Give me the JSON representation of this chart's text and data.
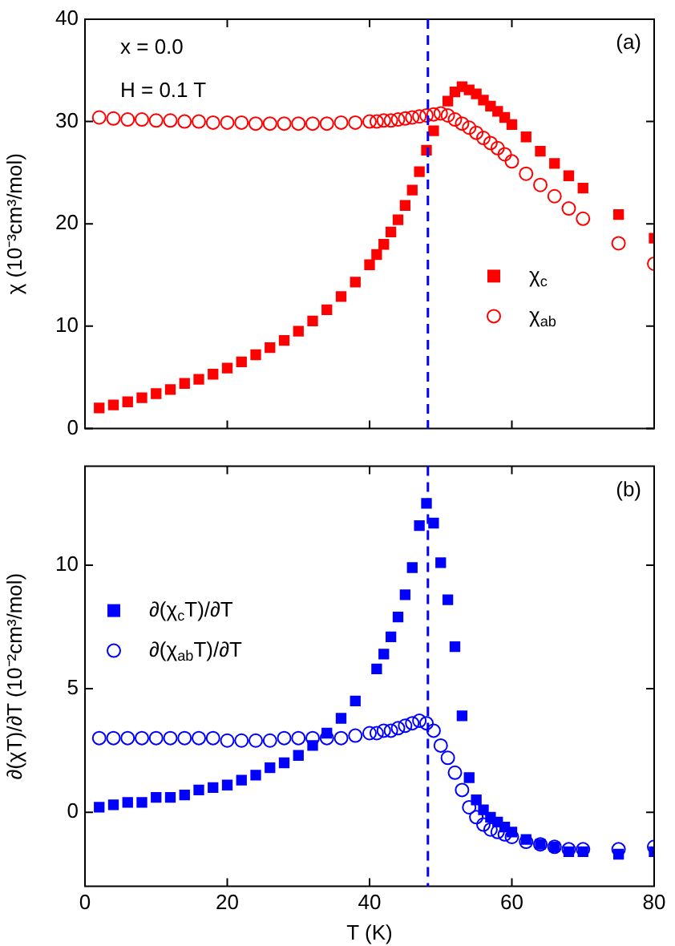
{
  "chart_data": [
    {
      "type": "scatter",
      "ylabel": "χ (10⁻³cm³/mol)",
      "annotations": [
        "x = 0.0",
        "H = 0.1 T",
        "(a)"
      ],
      "xlim": [
        0,
        80
      ],
      "xticks": [
        0,
        20,
        40,
        60,
        80
      ],
      "ylim": [
        0,
        40
      ],
      "yticks": [
        0,
        10,
        20,
        30,
        40
      ],
      "tick_labels": "y",
      "grid": false,
      "legend": "bottom right",
      "ref_lines": [
        {
          "axis": "x",
          "value": 48.2,
          "color": "#0000ff",
          "line_style": "dashed"
        }
      ],
      "series": [
        {
          "name": "χ$_{c}$",
          "color": "#ff0000",
          "marker": "square",
          "x": [
            2,
            4,
            6,
            8,
            10,
            12,
            14,
            16,
            18,
            20,
            22,
            24,
            26,
            28,
            30,
            32,
            34,
            36,
            38,
            40,
            41,
            42,
            43,
            44,
            45,
            46,
            47,
            48,
            49,
            51,
            52,
            53,
            54,
            55,
            56,
            57,
            58,
            59,
            60,
            62,
            64,
            66,
            68,
            70,
            75,
            80
          ],
          "values": [
            2.0,
            2.3,
            2.6,
            3.0,
            3.4,
            3.8,
            4.4,
            4.8,
            5.3,
            5.9,
            6.5,
            7.2,
            7.9,
            8.6,
            9.5,
            10.5,
            11.6,
            12.9,
            14.3,
            16.0,
            17.0,
            18.0,
            19.2,
            20.4,
            21.8,
            23.3,
            25.1,
            27.2,
            29.1,
            32.0,
            32.9,
            33.4,
            33.1,
            32.7,
            32.1,
            31.5,
            31.0,
            30.4,
            29.7,
            28.5,
            27.1,
            25.9,
            24.7,
            23.5,
            20.9,
            18.6
          ]
        },
        {
          "name": "χ$_{ab}$",
          "color": "#ff0000",
          "marker": "circle",
          "x": [
            2,
            4,
            6,
            8,
            10,
            12,
            14,
            16,
            18,
            20,
            22,
            24,
            26,
            28,
            30,
            32,
            34,
            36,
            38,
            40,
            41,
            42,
            43,
            44,
            45,
            46,
            47,
            48,
            49,
            50,
            51,
            52,
            53,
            54,
            55,
            56,
            57,
            58,
            59,
            60,
            62,
            64,
            66,
            68,
            70,
            75,
            80
          ],
          "values": [
            30.4,
            30.3,
            30.2,
            30.2,
            30.1,
            30.1,
            30.0,
            30.0,
            29.9,
            29.9,
            29.9,
            29.8,
            29.8,
            29.8,
            29.8,
            29.8,
            29.8,
            29.9,
            29.9,
            30.0,
            30.0,
            30.1,
            30.1,
            30.2,
            30.3,
            30.4,
            30.5,
            30.6,
            30.7,
            30.8,
            30.6,
            30.2,
            29.8,
            29.4,
            28.9,
            28.4,
            27.9,
            27.4,
            26.8,
            26.1,
            24.9,
            23.8,
            22.7,
            21.5,
            20.5,
            18.1,
            16.1
          ]
        }
      ]
    },
    {
      "type": "scatter",
      "xlabel": "T (K)",
      "ylabel": "∂(χT)/∂T (10⁻²cm³/mol)",
      "annotations": [
        "(b)"
      ],
      "xlim": [
        0,
        80
      ],
      "xticks": [
        0,
        20,
        40,
        60,
        80
      ],
      "ylim": [
        -3,
        14
      ],
      "yticks": [
        0,
        5,
        10
      ],
      "grid": false,
      "legend": "top left",
      "ref_lines": [
        {
          "axis": "x",
          "value": 48.2,
          "color": "#0000ff",
          "line_style": "dashed"
        }
      ],
      "series": [
        {
          "name": "∂(χ$_{c}$T)/∂T",
          "color": "#0000ff",
          "marker": "square",
          "x": [
            2,
            4,
            6,
            8,
            10,
            12,
            14,
            16,
            18,
            20,
            22,
            24,
            26,
            28,
            30,
            32,
            34,
            36,
            38,
            41,
            42,
            43,
            44,
            45,
            46,
            47,
            48,
            49,
            50,
            51,
            52,
            53,
            54,
            55,
            56,
            57,
            58,
            59,
            60,
            62,
            64,
            66,
            68,
            70,
            75,
            80
          ],
          "values": [
            0.2,
            0.3,
            0.4,
            0.4,
            0.6,
            0.6,
            0.7,
            0.9,
            1.0,
            1.1,
            1.3,
            1.5,
            1.8,
            2.0,
            2.3,
            2.7,
            3.2,
            3.8,
            4.5,
            5.8,
            6.4,
            7.1,
            7.9,
            8.8,
            9.9,
            11.6,
            12.5,
            11.7,
            10.1,
            8.6,
            6.7,
            3.9,
            1.4,
            0.5,
            0.1,
            -0.2,
            -0.4,
            -0.6,
            -0.8,
            -1.1,
            -1.3,
            -1.4,
            -1.6,
            -1.6,
            -1.7,
            -1.6
          ]
        },
        {
          "name": "∂(χ$_{ab}$T)/∂T",
          "color": "#0000ff",
          "marker": "circle",
          "x": [
            2,
            4,
            6,
            8,
            10,
            12,
            14,
            16,
            18,
            20,
            22,
            24,
            26,
            28,
            30,
            32,
            34,
            36,
            38,
            40,
            41,
            42,
            43,
            44,
            45,
            46,
            47,
            48,
            49,
            50,
            51,
            52,
            53,
            54,
            55,
            56,
            57,
            58,
            59,
            60,
            62,
            64,
            66,
            68,
            70,
            75,
            80
          ],
          "values": [
            3.0,
            3.0,
            3.0,
            3.0,
            3.0,
            3.0,
            3.0,
            3.0,
            3.0,
            2.9,
            2.9,
            2.9,
            2.9,
            3.0,
            3.0,
            3.0,
            3.0,
            3.0,
            3.1,
            3.2,
            3.2,
            3.3,
            3.3,
            3.4,
            3.5,
            3.6,
            3.7,
            3.6,
            3.3,
            2.7,
            2.2,
            1.6,
            0.9,
            0.2,
            -0.2,
            -0.5,
            -0.7,
            -0.8,
            -0.9,
            -1.0,
            -1.2,
            -1.3,
            -1.4,
            -1.5,
            -1.5,
            -1.5,
            -1.4
          ]
        }
      ]
    }
  ]
}
